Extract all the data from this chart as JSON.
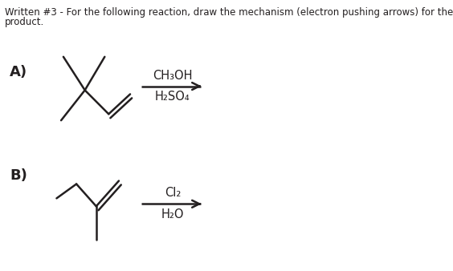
{
  "title_line1": "Written #3 - For the following reaction, draw the mechanism (electron pushing arrows) for the major",
  "title_line2": "product.",
  "label_A": "A)",
  "label_B": "B)",
  "reagent_A_line1": "CH₃OH",
  "reagent_A_line2": "H₂SO₄",
  "reagent_B_line1": "Cl₂",
  "reagent_B_line2": "H₂O",
  "bg_color": "#ffffff",
  "text_color": "#231f20",
  "line_color": "#231f20",
  "font_size_title": 8.5,
  "font_size_label": 13,
  "font_size_reagent": 10.5
}
